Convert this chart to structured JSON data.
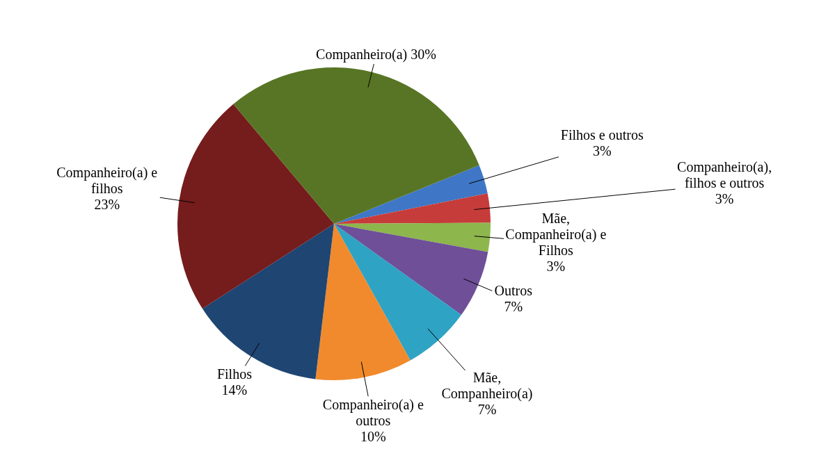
{
  "chart_data": {
    "type": "pie",
    "categories": [
      "Filhos e outros",
      "Companheiro(a), filhos e outros",
      "Mãe, Companheiro(a) e Filhos",
      "Outros",
      "Mãe, Companheiro(a)",
      "Companheiro(a) e outros",
      "Filhos",
      "Companheiro(a) e filhos",
      "Companheiro(a)"
    ],
    "values": [
      3,
      3,
      3,
      7,
      7,
      10,
      14,
      23,
      30
    ],
    "value_labels": [
      "3%",
      "3%",
      "3%",
      "7%",
      "7%",
      "10%",
      "14%",
      "23%",
      "30%"
    ],
    "colors": [
      "#3f77c6",
      "#c63c3a",
      "#8db64c",
      "#6e4f98",
      "#2ea3c4",
      "#f18a2c",
      "#1f4573",
      "#751c1c",
      "#577524"
    ],
    "legend": false
  }
}
